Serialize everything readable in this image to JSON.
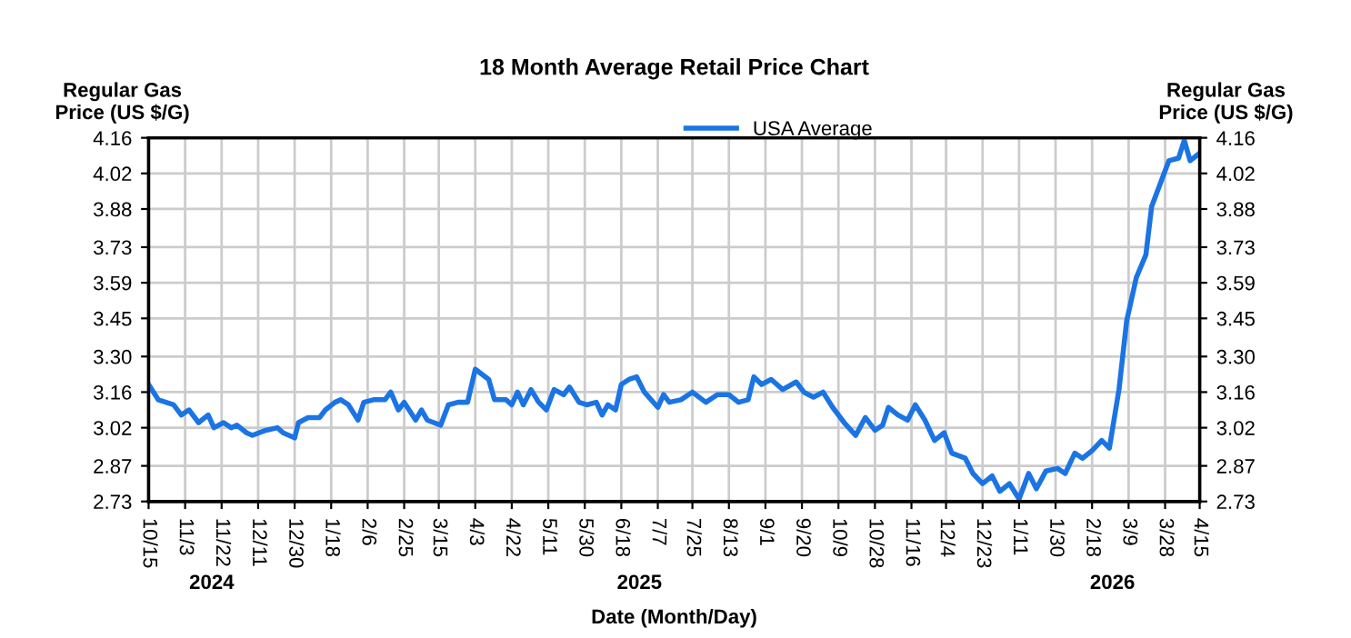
{
  "chart_data": {
    "type": "line",
    "title": "18 Month Average Retail Price Chart",
    "xlabel": "Date (Month/Day)",
    "ylabel": "Regular Gas\nPrice (US $/G)",
    "y2label": "Regular Gas\nPrice (US $/G)",
    "annotations": [
      "2024",
      "2025",
      "2026"
    ],
    "x": [
      "2024-10-15",
      "2024-10-20",
      "2024-10-24",
      "2024-10-28",
      "2024-11-01",
      "2024-11-05",
      "2024-11-10",
      "2024-11-15",
      "2024-11-18",
      "2024-11-23",
      "2024-11-27",
      "2024-11-30",
      "2024-12-05",
      "2024-12-08",
      "2024-12-15",
      "2024-12-21",
      "2024-12-24",
      "2024-12-30",
      "2025-01-01",
      "2025-01-06",
      "2025-01-12",
      "2025-01-15",
      "2025-01-20",
      "2025-01-23",
      "2025-01-27",
      "2025-02-01",
      "2025-02-04",
      "2025-02-09",
      "2025-02-15",
      "2025-02-18",
      "2025-02-22",
      "2025-02-25",
      "2025-03-03",
      "2025-03-06",
      "2025-03-09",
      "2025-03-16",
      "2025-03-20",
      "2025-03-25",
      "2025-03-30",
      "2025-04-03",
      "2025-04-10",
      "2025-04-13",
      "2025-04-19",
      "2025-04-22",
      "2025-04-25",
      "2025-04-28",
      "2025-05-02",
      "2025-05-06",
      "2025-05-10",
      "2025-05-14",
      "2025-05-19",
      "2025-05-22",
      "2025-05-27",
      "2025-05-31",
      "2025-06-05",
      "2025-06-08",
      "2025-06-11",
      "2025-06-15",
      "2025-06-18",
      "2025-06-22",
      "2025-06-26",
      "2025-06-30",
      "2025-07-07",
      "2025-07-10",
      "2025-07-13",
      "2025-07-19",
      "2025-07-25",
      "2025-08-01",
      "2025-08-07",
      "2025-08-13",
      "2025-08-18",
      "2025-08-23",
      "2025-08-26",
      "2025-08-30",
      "2025-09-04",
      "2025-09-10",
      "2025-09-17",
      "2025-09-21",
      "2025-09-26",
      "2025-10-01",
      "2025-10-06",
      "2025-10-12",
      "2025-10-18",
      "2025-10-23",
      "2025-10-28",
      "2025-11-01",
      "2025-11-04",
      "2025-11-09",
      "2025-11-14",
      "2025-11-18",
      "2025-11-23",
      "2025-11-28",
      "2025-12-03",
      "2025-12-07",
      "2025-12-14",
      "2025-12-18",
      "2025-12-23",
      "2025-12-28",
      "2026-01-01",
      "2026-01-06",
      "2026-01-11",
      "2026-01-16",
      "2026-01-20",
      "2026-01-25",
      "2026-01-31",
      "2026-02-04",
      "2026-02-09",
      "2026-02-13",
      "2026-02-18",
      "2026-02-23",
      "2026-02-27",
      "2026-03-04",
      "2026-03-08",
      "2026-03-13",
      "2026-03-18",
      "2026-03-21",
      "2026-03-25",
      "2026-03-30",
      "2026-04-04",
      "2026-04-07",
      "2026-04-10",
      "2026-04-15"
    ],
    "series": [
      {
        "name": "USA Average",
        "color": "#1b74e4",
        "values": [
          3.19,
          3.13,
          3.12,
          3.11,
          3.07,
          3.09,
          3.04,
          3.07,
          3.02,
          3.04,
          3.02,
          3.03,
          3.0,
          2.99,
          3.01,
          3.02,
          3.0,
          2.98,
          3.04,
          3.06,
          3.06,
          3.09,
          3.12,
          3.13,
          3.11,
          3.05,
          3.12,
          3.13,
          3.13,
          3.16,
          3.09,
          3.12,
          3.05,
          3.09,
          3.05,
          3.03,
          3.11,
          3.12,
          3.12,
          3.25,
          3.21,
          3.13,
          3.13,
          3.11,
          3.16,
          3.11,
          3.17,
          3.12,
          3.09,
          3.17,
          3.15,
          3.18,
          3.12,
          3.11,
          3.12,
          3.07,
          3.11,
          3.09,
          3.19,
          3.21,
          3.22,
          3.16,
          3.1,
          3.15,
          3.12,
          3.13,
          3.16,
          3.12,
          3.15,
          3.15,
          3.12,
          3.13,
          3.22,
          3.19,
          3.21,
          3.17,
          3.2,
          3.16,
          3.14,
          3.16,
          3.1,
          3.04,
          2.99,
          3.06,
          3.01,
          3.03,
          3.1,
          3.07,
          3.05,
          3.11,
          3.05,
          2.97,
          3.0,
          2.92,
          2.9,
          2.84,
          2.8,
          2.83,
          2.77,
          2.8,
          2.74,
          2.84,
          2.78,
          2.85,
          2.86,
          2.84,
          2.92,
          2.9,
          2.93,
          2.97,
          2.94,
          3.17,
          3.44,
          3.61,
          3.7,
          3.89,
          3.97,
          4.07,
          4.08,
          4.15,
          4.07,
          4.1
        ]
      }
    ],
    "xlim": [
      "2024-10-15",
      "2026-04-15"
    ],
    "xticks": [
      {
        "value": "2024-10-15",
        "label": "10/15"
      },
      {
        "value": "2024-11-03",
        "label": "11/3"
      },
      {
        "value": "2024-11-22",
        "label": "11/22"
      },
      {
        "value": "2024-12-11",
        "label": "12/11"
      },
      {
        "value": "2024-12-30",
        "label": "12/30"
      },
      {
        "value": "2025-01-18",
        "label": "1/18"
      },
      {
        "value": "2025-02-06",
        "label": "2/6"
      },
      {
        "value": "2025-02-25",
        "label": "2/25"
      },
      {
        "value": "2025-03-15",
        "label": "3/15"
      },
      {
        "value": "2025-04-03",
        "label": "4/3"
      },
      {
        "value": "2025-04-22",
        "label": "4/22"
      },
      {
        "value": "2025-05-11",
        "label": "5/11"
      },
      {
        "value": "2025-05-30",
        "label": "5/30"
      },
      {
        "value": "2025-06-18",
        "label": "6/18"
      },
      {
        "value": "2025-07-07",
        "label": "7/7"
      },
      {
        "value": "2025-07-25",
        "label": "7/25"
      },
      {
        "value": "2025-08-13",
        "label": "8/13"
      },
      {
        "value": "2025-09-01",
        "label": "9/1"
      },
      {
        "value": "2025-09-20",
        "label": "9/20"
      },
      {
        "value": "2025-10-09",
        "label": "10/9"
      },
      {
        "value": "2025-10-28",
        "label": "10/28"
      },
      {
        "value": "2025-11-16",
        "label": "11/16"
      },
      {
        "value": "2025-12-04",
        "label": "12/4"
      },
      {
        "value": "2025-12-23",
        "label": "12/23"
      },
      {
        "value": "2026-01-11",
        "label": "1/11"
      },
      {
        "value": "2026-01-30",
        "label": "1/30"
      },
      {
        "value": "2026-02-18",
        "label": "2/18"
      },
      {
        "value": "2026-03-09",
        "label": "3/9"
      },
      {
        "value": "2026-03-28",
        "label": "3/28"
      },
      {
        "value": "2026-04-15",
        "label": "4/15"
      }
    ],
    "ylim": [
      2.73,
      4.16
    ],
    "yticks": [
      {
        "value": 2.73,
        "label": "2.73"
      },
      {
        "value": 2.87,
        "label": "2.87"
      },
      {
        "value": 3.02,
        "label": "3.02"
      },
      {
        "value": 3.16,
        "label": "3.16"
      },
      {
        "value": 3.3,
        "label": "3.30"
      },
      {
        "value": 3.45,
        "label": "3.45"
      },
      {
        "value": 3.59,
        "label": "3.59"
      },
      {
        "value": 3.73,
        "label": "3.73"
      },
      {
        "value": 3.88,
        "label": "3.88"
      },
      {
        "value": 4.02,
        "label": "4.02"
      },
      {
        "value": 4.16,
        "label": "4.16"
      }
    ],
    "y2lim": [
      2.73,
      4.16
    ],
    "y2ticks": [
      {
        "value": 2.73,
        "label": "2.73"
      },
      {
        "value": 2.87,
        "label": "2.87"
      },
      {
        "value": 3.02,
        "label": "3.02"
      },
      {
        "value": 3.16,
        "label": "3.16"
      },
      {
        "value": 3.3,
        "label": "3.30"
      },
      {
        "value": 3.45,
        "label": "3.45"
      },
      {
        "value": 3.59,
        "label": "3.59"
      },
      {
        "value": 3.73,
        "label": "3.73"
      },
      {
        "value": 3.88,
        "label": "3.88"
      },
      {
        "value": 4.02,
        "label": "4.02"
      },
      {
        "value": 4.16,
        "label": "4.16"
      }
    ],
    "grid": true,
    "legend": "top",
    "marker": "none",
    "line_style": "solid"
  }
}
